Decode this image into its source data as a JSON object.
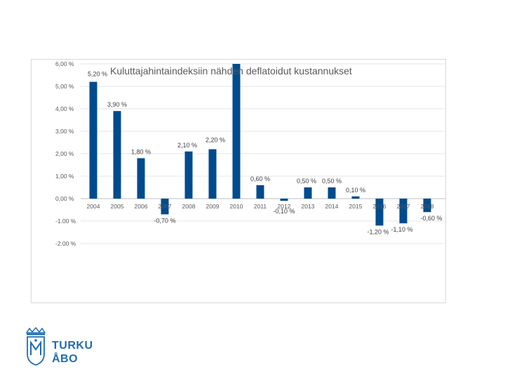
{
  "chart_data": {
    "type": "bar",
    "title": "Kuluttajahintaindeksiin nähden deflatoidut kustannukset",
    "categories": [
      "2004",
      "2005",
      "2006",
      "2007",
      "2008",
      "2009",
      "2010",
      "2011",
      "2012",
      "2013",
      "2014",
      "2015",
      "2016",
      "2017",
      "2018"
    ],
    "values": [
      5.2,
      3.9,
      1.8,
      -0.7,
      2.1,
      2.2,
      6.0,
      0.6,
      -0.1,
      0.5,
      0.5,
      0.1,
      -1.2,
      -1.1,
      -0.6
    ],
    "data_labels": [
      "5,20 %",
      "3,90 %",
      "1,80 %",
      "-0,70 %",
      "2,10 %",
      "2,20 %",
      "",
      "0,60 %",
      "-0,10 %",
      "0,50 %",
      "0,50 %",
      "0,10 %",
      "-1,20 %",
      "-1,10 %",
      "-0,60 %"
    ],
    "ylim": [
      -2,
      6
    ],
    "yticks": [
      6,
      5,
      4,
      3,
      2,
      1,
      0,
      -1,
      -2
    ],
    "ytick_labels": [
      "6,00 %",
      "5,00 %",
      "4,00 %",
      "3,00 %",
      "2,00 %",
      "1,00 %",
      "0,00 %",
      "-1.00 %",
      "-2.00 %"
    ],
    "bar_color": "#004b8d",
    "xlabel": "",
    "ylabel": "",
    "grid": true
  },
  "logo": {
    "line1": "TURKU",
    "line2": "ÅBO",
    "color": "#1f6db3"
  }
}
